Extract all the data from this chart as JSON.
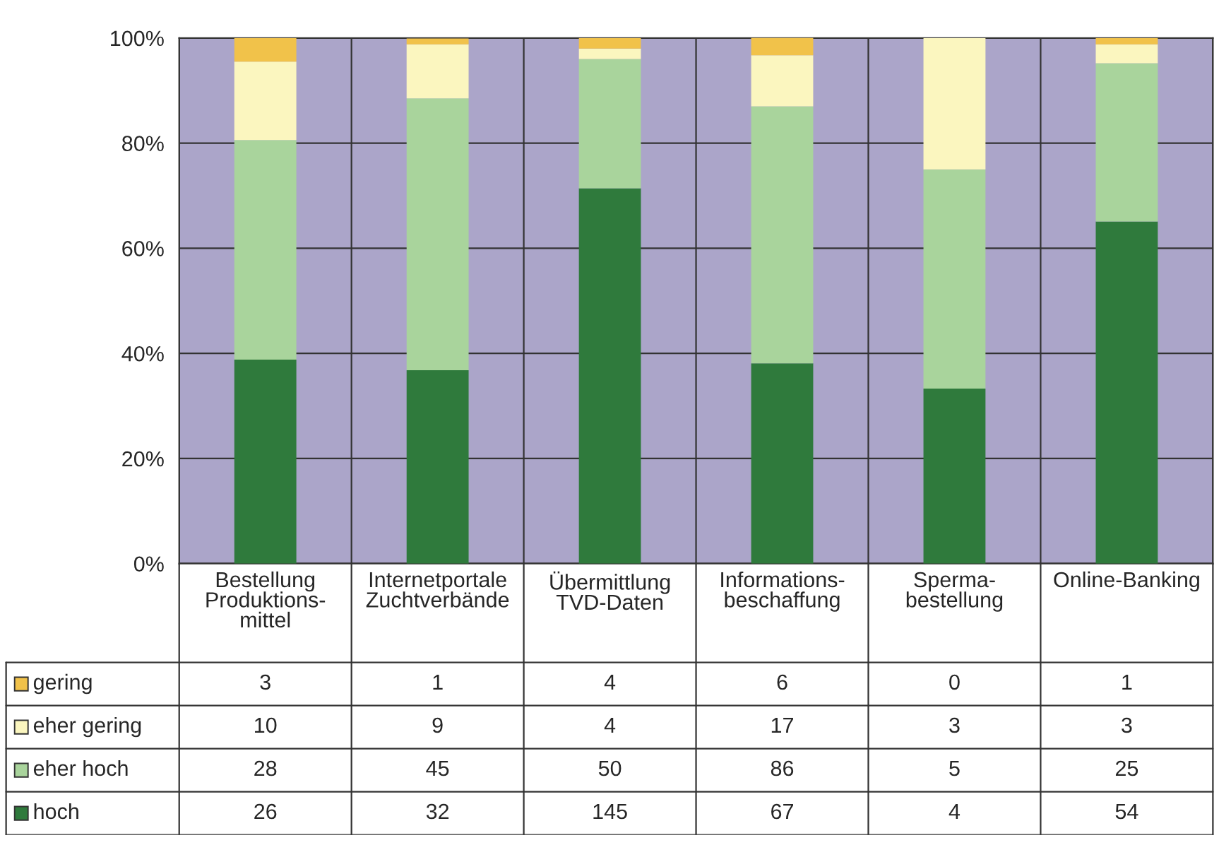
{
  "chart_data": {
    "type": "bar",
    "stacked": true,
    "categories": [
      "Bestellung\nProduktions-\nmittel",
      "Internetportale\nZuchtverbände",
      "Übermittlung\nTVD-Daten",
      "Informations-\nbeschaffung",
      "Sperma-\nbestellung",
      "Online-Banking"
    ],
    "series": [
      {
        "name": "hoch",
        "color": "#2f7a3c",
        "values": [
          38.8,
          36.8,
          71.4,
          38.1,
          33.3,
          65.1
        ]
      },
      {
        "name": "eher hoch",
        "color": "#a9d49c",
        "values": [
          41.8,
          51.7,
          24.6,
          48.9,
          41.7,
          30.1
        ]
      },
      {
        "name": "eher gering",
        "color": "#fbf6bf",
        "values": [
          14.9,
          10.3,
          2.0,
          9.7,
          25.0,
          3.6
        ]
      },
      {
        "name": "gering",
        "color": "#f1c24a",
        "values": [
          4.5,
          1.1,
          2.0,
          3.4,
          0.0,
          1.2
        ]
      }
    ],
    "annotations": [
      "3",
      "1",
      "4",
      "6",
      "0",
      "1",
      "10",
      "9",
      "4",
      "17",
      "3",
      "3",
      "28",
      "45",
      "50",
      "86",
      "5",
      "25",
      "26",
      "32",
      "145",
      "67",
      "4",
      "54"
    ],
    "ylim": [
      0,
      100
    ],
    "yticks": [
      {
        "value": 0,
        "label": "0%"
      },
      {
        "value": 20,
        "label": "20%"
      },
      {
        "value": 40,
        "label": "40%"
      },
      {
        "value": 60,
        "label": "60%"
      },
      {
        "value": 80,
        "label": "80%"
      },
      {
        "value": 100,
        "label": "100%"
      }
    ],
    "grid": "y",
    "legend": "bottom left"
  }
}
